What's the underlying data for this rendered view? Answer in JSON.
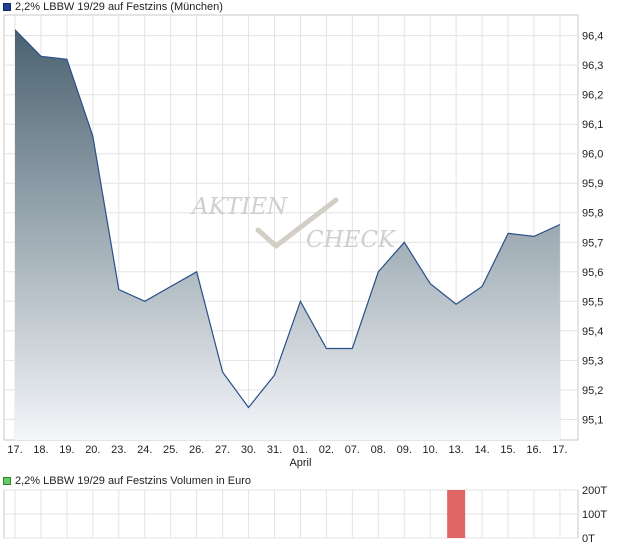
{
  "chart_data": [
    {
      "type": "area",
      "legend_label": "2,2% LBBW 19/29 auf Festzins (München)",
      "x_tick_labels": [
        "17.",
        "18.",
        "19.",
        "20.",
        "23.",
        "24.",
        "25.",
        "26.",
        "27.",
        "30.",
        "31.",
        "01.",
        "02.",
        "07.",
        "08.",
        "09.",
        "10.",
        "13.",
        "14.",
        "15.",
        "16.",
        "17."
      ],
      "month_label": "April",
      "y_ticks": [
        95.1,
        95.2,
        95.3,
        95.4,
        95.5,
        95.6,
        95.7,
        95.8,
        95.9,
        96.0,
        96.1,
        96.2,
        96.3,
        96.4
      ],
      "y_tick_labels": [
        "95,1",
        "95,2",
        "95,3",
        "95,4",
        "95,5",
        "95,6",
        "95,7",
        "95,8",
        "95,9",
        "96,0",
        "96,1",
        "96,2",
        "96,3",
        "96,4"
      ],
      "ylim": [
        95.03,
        96.47
      ],
      "series": [
        {
          "values": [
            96.42,
            96.33,
            96.32,
            96.06,
            95.54,
            95.5,
            95.55,
            95.6,
            95.26,
            95.14,
            95.25,
            95.5,
            95.34,
            95.34,
            95.6,
            95.7,
            95.56,
            95.49,
            95.55,
            95.73,
            95.72,
            95.76
          ]
        }
      ],
      "grid": true,
      "watermark_top": "AKTIEN",
      "watermark_bottom": "CHECK",
      "colors": {
        "line": "#2a4f8a",
        "fill_top": "#4a6270",
        "fill_bottom": "#f4f6f9",
        "legend_square": "#1f3f8f"
      }
    },
    {
      "type": "bar",
      "legend_label": "2,2% LBBW 19/29 auf Festzins Volumen in Euro",
      "y_tick_labels": [
        "200T",
        "100T",
        "0T"
      ],
      "y_ticks": [
        200,
        100,
        0
      ],
      "ylim": [
        0,
        200
      ],
      "values": [
        0,
        0,
        0,
        0,
        0,
        0,
        0,
        0,
        0,
        0,
        0,
        0,
        0,
        0,
        0,
        0,
        0,
        200,
        0,
        0,
        0,
        0
      ],
      "grid": true,
      "colors": {
        "bar": "#e06666",
        "legend_square": "#66cc66"
      }
    }
  ]
}
